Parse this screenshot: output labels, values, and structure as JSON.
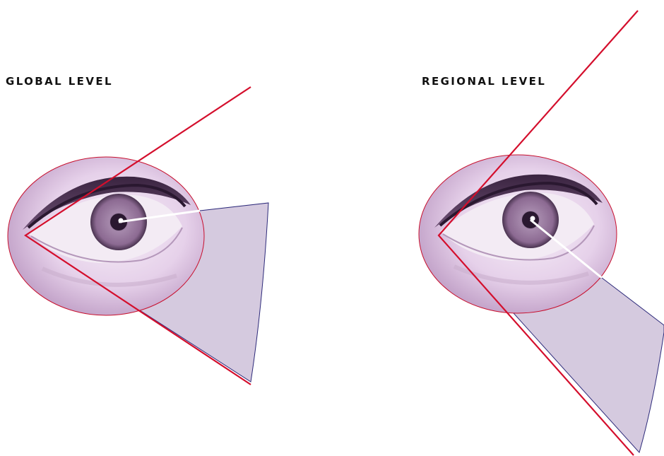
{
  "labels": {
    "global": "GLOBAL LEVEL",
    "regional": "REGIONAL LEVEL"
  },
  "colors": {
    "wedge_fill": "#d5cadf",
    "wedge_stroke": "#2d2a7a",
    "red_line": "#d40e2c",
    "sight_line": "#ffffff",
    "eye_tint": "#e9d6ec",
    "iris": "#8d6c93"
  },
  "icons": {
    "eye": "human-eye-photo"
  }
}
